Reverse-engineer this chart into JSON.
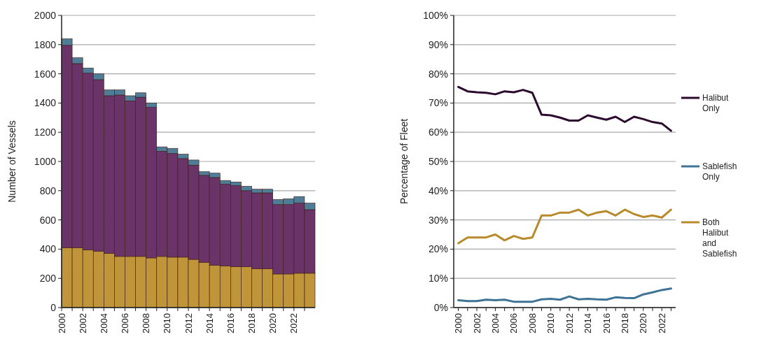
{
  "chart_data": [
    {
      "type": "bar",
      "stacked": true,
      "ylabel": "Number of Vessels",
      "categories": [
        "2000",
        null,
        "2002",
        null,
        "2004",
        null,
        "2006",
        null,
        "2008",
        null,
        "2010",
        null,
        "2012",
        null,
        "2014",
        null,
        "2016",
        null,
        "2018",
        null,
        "2020",
        null,
        "2022",
        null
      ],
      "series": [
        {
          "color": "#c09438",
          "values": [
            410,
            410,
            395,
            385,
            370,
            350,
            350,
            350,
            340,
            350,
            345,
            345,
            330,
            310,
            290,
            285,
            280,
            280,
            265,
            265,
            230,
            230,
            235,
            235
          ]
        },
        {
          "color": "#6b3468",
          "values": [
            1385,
            1260,
            1210,
            1175,
            1080,
            1105,
            1065,
            1090,
            1030,
            720,
            710,
            675,
            645,
            595,
            600,
            560,
            555,
            520,
            520,
            520,
            475,
            475,
            480,
            435
          ]
        },
        {
          "color": "#4f7c96",
          "values": [
            45,
            40,
            35,
            40,
            40,
            35,
            35,
            30,
            30,
            30,
            35,
            30,
            35,
            25,
            30,
            25,
            25,
            30,
            25,
            25,
            35,
            40,
            45,
            45
          ]
        }
      ],
      "ylim": [
        0,
        2000
      ],
      "yticks": [
        0,
        200,
        400,
        600,
        800,
        1000,
        1200,
        1400,
        1600,
        1800,
        2000
      ],
      "grid": "y",
      "legend": false
    },
    {
      "type": "line",
      "ylabel": "Percentage of Fleet",
      "categories": [
        "2000",
        null,
        "2002",
        null,
        "2004",
        null,
        "2006",
        null,
        "2008",
        null,
        "2010",
        null,
        "2012",
        null,
        "2014",
        null,
        "2016",
        null,
        "2018",
        null,
        "2020",
        null,
        "2022",
        null
      ],
      "series": [
        {
          "name": "Halibut Only",
          "color": "#2b0a2e",
          "values": [
            75.5,
            74,
            73.7,
            73.5,
            73,
            74,
            73.7,
            74.5,
            73.5,
            66,
            65.8,
            65,
            64,
            64,
            65.8,
            65,
            64.3,
            65.3,
            63.5,
            65.3,
            64.5,
            63.5,
            63,
            60.5
          ]
        },
        {
          "name": "Sablefish Only",
          "color": "#3f7396",
          "values": [
            2.5,
            2.2,
            2.2,
            2.7,
            2.5,
            2.7,
            2,
            2,
            2,
            2.8,
            3,
            2.7,
            3.8,
            2.8,
            3,
            2.8,
            2.7,
            3.5,
            3.3,
            3.2,
            4.5,
            5.2,
            6,
            6.5
          ]
        },
        {
          "name": "Both Halibut and Sablefish",
          "color": "#b88a2c",
          "values": [
            22,
            24,
            24,
            24,
            25,
            23,
            24.5,
            23.5,
            24,
            31.5,
            31.5,
            32.5,
            32.5,
            33.5,
            31.5,
            32.5,
            33,
            31.5,
            33.5,
            32,
            31,
            31.5,
            30.8,
            33.5
          ]
        }
      ],
      "ylim": [
        0,
        100
      ],
      "yticks": [
        {
          "value": 0,
          "label": "0%"
        },
        {
          "value": 10,
          "label": "10%"
        },
        {
          "value": 20,
          "label": "20%"
        },
        {
          "value": 30,
          "label": "30%"
        },
        {
          "value": 40,
          "label": "40%"
        },
        {
          "value": 50,
          "label": "50%"
        },
        {
          "value": 60,
          "label": "60%"
        },
        {
          "value": 70,
          "label": "70%"
        },
        {
          "value": 80,
          "label": "80%"
        },
        {
          "value": 90,
          "label": "90%"
        },
        {
          "value": 100,
          "label": "100%"
        }
      ],
      "grid": "y",
      "legend": "right",
      "marker": "none",
      "line_style": "solid"
    }
  ]
}
